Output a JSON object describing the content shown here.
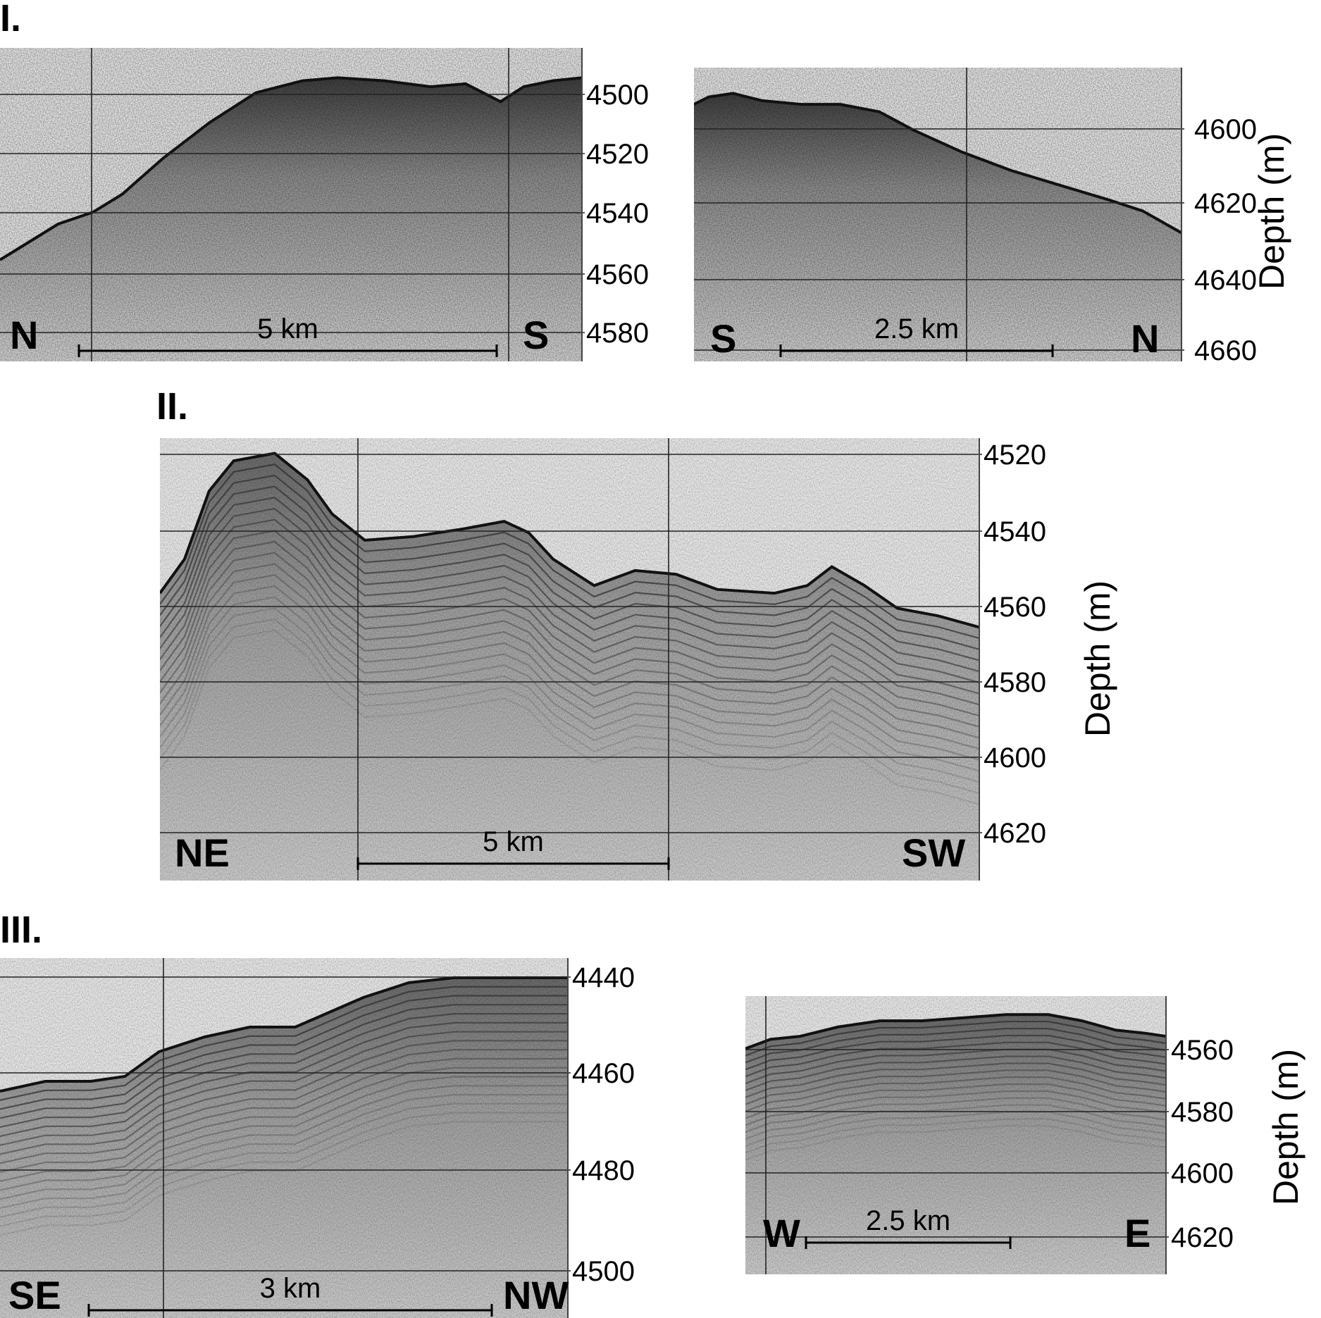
{
  "sections": [
    "I.",
    "II.",
    "III."
  ],
  "panels": [
    {
      "id": "I-a",
      "section": "I.",
      "direction_left": "N",
      "direction_right": "S",
      "scale_label": "5 km",
      "depth_ticks": [
        "4500",
        "4520",
        "4540",
        "4560",
        "4580"
      ],
      "depth_range": [
        4485,
        4590
      ],
      "depth_axis_label": "",
      "layered": false,
      "seafloor_profile": [
        [
          0.0,
          4556
        ],
        [
          0.05,
          4550
        ],
        [
          0.1,
          4544
        ],
        [
          0.16,
          4540
        ],
        [
          0.21,
          4534
        ],
        [
          0.28,
          4522
        ],
        [
          0.36,
          4510
        ],
        [
          0.44,
          4500
        ],
        [
          0.52,
          4496
        ],
        [
          0.58,
          4495
        ],
        [
          0.66,
          4496
        ],
        [
          0.74,
          4498
        ],
        [
          0.8,
          4497
        ],
        [
          0.86,
          4503
        ],
        [
          0.9,
          4498
        ],
        [
          0.95,
          4496
        ],
        [
          1.0,
          4495
        ]
      ]
    },
    {
      "id": "I-b",
      "section": "I.",
      "direction_left": "S",
      "direction_right": "N",
      "scale_label": "2.5 km",
      "depth_ticks": [
        "4600",
        "4620",
        "4640",
        "4660"
      ],
      "depth_range": [
        4583,
        4663
      ],
      "depth_axis_label": "Depth (m)",
      "layered": false,
      "seafloor_profile": [
        [
          0.0,
          4593
        ],
        [
          0.03,
          4591
        ],
        [
          0.08,
          4590
        ],
        [
          0.14,
          4592
        ],
        [
          0.22,
          4593
        ],
        [
          0.3,
          4593
        ],
        [
          0.38,
          4595
        ],
        [
          0.45,
          4600
        ],
        [
          0.55,
          4606
        ],
        [
          0.65,
          4611
        ],
        [
          0.75,
          4615
        ],
        [
          0.85,
          4619
        ],
        [
          0.92,
          4622
        ],
        [
          1.0,
          4628
        ]
      ]
    },
    {
      "id": "II",
      "section": "II.",
      "direction_left": "NE",
      "direction_right": "SW",
      "scale_label": "5 km",
      "depth_ticks": [
        "4520",
        "4540",
        "4560",
        "4580",
        "4600",
        "4620"
      ],
      "depth_range": [
        4516,
        4633
      ],
      "depth_axis_label": "Depth (m)",
      "layered": true,
      "seafloor_profile": [
        [
          0.0,
          4557
        ],
        [
          0.03,
          4548
        ],
        [
          0.06,
          4530
        ],
        [
          0.09,
          4522
        ],
        [
          0.14,
          4520
        ],
        [
          0.18,
          4527
        ],
        [
          0.21,
          4536
        ],
        [
          0.25,
          4543
        ],
        [
          0.31,
          4542
        ],
        [
          0.37,
          4540
        ],
        [
          0.42,
          4538
        ],
        [
          0.45,
          4541
        ],
        [
          0.48,
          4548
        ],
        [
          0.53,
          4555
        ],
        [
          0.58,
          4551
        ],
        [
          0.63,
          4552
        ],
        [
          0.68,
          4556
        ],
        [
          0.75,
          4557
        ],
        [
          0.79,
          4555
        ],
        [
          0.82,
          4550
        ],
        [
          0.86,
          4555
        ],
        [
          0.9,
          4561
        ],
        [
          0.95,
          4563
        ],
        [
          1.0,
          4566
        ]
      ]
    },
    {
      "id": "III-a",
      "section": "III.",
      "direction_left": "SE",
      "direction_right": "NW",
      "scale_label": "3 km",
      "depth_ticks": [
        "4440",
        "4460",
        "4480",
        "4500"
      ],
      "depth_range": [
        4436,
        4509
      ],
      "depth_axis_label": "",
      "layered": true,
      "seafloor_profile": [
        [
          0.0,
          4463
        ],
        [
          0.08,
          4461
        ],
        [
          0.16,
          4461
        ],
        [
          0.22,
          4460
        ],
        [
          0.28,
          4455
        ],
        [
          0.36,
          4452
        ],
        [
          0.44,
          4450
        ],
        [
          0.52,
          4450
        ],
        [
          0.58,
          4447
        ],
        [
          0.64,
          4444
        ],
        [
          0.72,
          4441
        ],
        [
          0.8,
          4440
        ],
        [
          0.88,
          4440
        ],
        [
          1.0,
          4440
        ]
      ]
    },
    {
      "id": "III-b",
      "section": "III.",
      "direction_left": "W",
      "direction_right": "E",
      "scale_label": "2.5 km",
      "depth_ticks": [
        "4560",
        "4580",
        "4600",
        "4620"
      ],
      "depth_range": [
        4547,
        4637
      ],
      "depth_axis_label": "Depth (m)",
      "layered": true,
      "seafloor_profile": [
        [
          0.0,
          4564
        ],
        [
          0.06,
          4561
        ],
        [
          0.13,
          4560
        ],
        [
          0.22,
          4557
        ],
        [
          0.32,
          4555
        ],
        [
          0.42,
          4555
        ],
        [
          0.52,
          4554
        ],
        [
          0.62,
          4553
        ],
        [
          0.72,
          4553
        ],
        [
          0.8,
          4555
        ],
        [
          0.88,
          4558
        ],
        [
          0.95,
          4559
        ],
        [
          1.0,
          4560
        ]
      ]
    }
  ]
}
